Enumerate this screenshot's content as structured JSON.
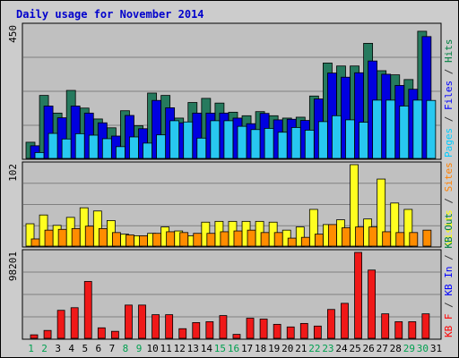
{
  "chart_data": {
    "type": "bar",
    "title": "Daily usage for November 2014",
    "categories": [
      "1",
      "2",
      "3",
      "4",
      "5",
      "6",
      "7",
      "8",
      "9",
      "10",
      "11",
      "12",
      "13",
      "14",
      "15",
      "16",
      "17",
      "18",
      "19",
      "20",
      "21",
      "22",
      "23",
      "24",
      "25",
      "26",
      "27",
      "28",
      "29",
      "30",
      "31"
    ],
    "weekend_days": [
      "1",
      "2",
      "8",
      "9",
      "15",
      "16",
      "22",
      "23",
      "29",
      "30"
    ],
    "panels": [
      {
        "id": "top",
        "max_label": "450",
        "ymax": 450,
        "legend": [
          {
            "text": "Pages",
            "color": "#00ccff"
          },
          {
            "text": " / ",
            "color": "#333333"
          },
          {
            "text": "Files",
            "color": "#0000ff"
          },
          {
            "text": " / ",
            "color": "#333333"
          },
          {
            "text": "Hits",
            "color": "#008040"
          }
        ],
        "series": [
          {
            "name": "Hits",
            "color": "#267a5e",
            "slot": 0,
            "values": [
              55,
              214,
              154,
              231,
              171,
              134,
              104,
              162,
              111,
              222,
              214,
              137,
              190,
              204,
              188,
              157,
              145,
              159,
              145,
              137,
              140,
              212,
              324,
              314,
              314,
              391,
              298,
              284,
              268,
              432,
              0
            ]
          },
          {
            "name": "Files",
            "color": "#0000e0",
            "slot": 1,
            "values": [
              43,
              178,
              138,
              178,
              154,
              121,
              76,
              146,
              101,
              197,
              172,
              121,
              154,
              154,
              154,
              137,
              118,
              153,
              131,
              133,
              129,
              202,
              290,
              276,
              291,
              331,
              286,
              248,
              235,
              414,
              0
            ]
          },
          {
            "name": "Pages",
            "color": "#28c8f0",
            "slot": 2,
            "values": [
              20,
              85,
              66,
              84,
              79,
              67,
              40,
              73,
              52,
              80,
              128,
              124,
              69,
              128,
              128,
              109,
              98,
              102,
              89,
              105,
              96,
              125,
              145,
              131,
              123,
              198,
              198,
              178,
              198,
              197,
              0
            ]
          }
        ]
      },
      {
        "id": "middle",
        "max_label": "102",
        "ymax": 102,
        "legend": [
          {
            "text": "Visits",
            "color": "#ffff00"
          },
          {
            "text": " / ",
            "color": "#333333"
          },
          {
            "text": "Sites",
            "color": "#ff8000"
          }
        ],
        "series": [
          {
            "name": "Visits",
            "color": "#ffff20",
            "slot": 0,
            "values": [
              28,
              39,
              26,
              36,
              48,
              44,
              32,
              15,
              13,
              16,
              24,
              19,
              13,
              30,
              31,
              31,
              31,
              31,
              30,
              20,
              24,
              46,
              27,
              33,
              102,
              34,
              84,
              54,
              46,
              0,
              0
            ]
          },
          {
            "name": "Sites",
            "color": "#ff8c00",
            "slot": 1,
            "values": [
              9,
              20,
              21,
              22,
              25,
              22,
              17,
              14,
              13,
              16,
              18,
              17,
              16,
              16,
              18,
              19,
              20,
              17,
              17,
              10,
              11,
              15,
              27,
              23,
              24,
              24,
              18,
              17,
              17,
              20,
              0
            ]
          }
        ]
      },
      {
        "id": "bottom",
        "max_label": "98201",
        "ymax": 98201,
        "legend": [
          {
            "text": "KB F",
            "color": "#ff0000"
          },
          {
            "text": " / ",
            "color": "#333333"
          },
          {
            "text": "KB In",
            "color": "#0000ff"
          },
          {
            "text": " / ",
            "color": "#333333"
          },
          {
            "text": "KB Out",
            "color": "#008040"
          }
        ],
        "series": [
          {
            "name": "KB F",
            "color": "#f01818",
            "slot": 0,
            "values": [
              4000,
              9000,
              32000,
              35000,
              65000,
              12000,
              8000,
              38000,
              38000,
              27000,
              27000,
              11000,
              18000,
              19000,
              26000,
              4500,
              23000,
              22000,
              16000,
              13000,
              17000,
              14000,
              33000,
              40000,
              98201,
              78000,
              28000,
              19000,
              19000,
              28000,
              0
            ]
          }
        ]
      }
    ]
  }
}
